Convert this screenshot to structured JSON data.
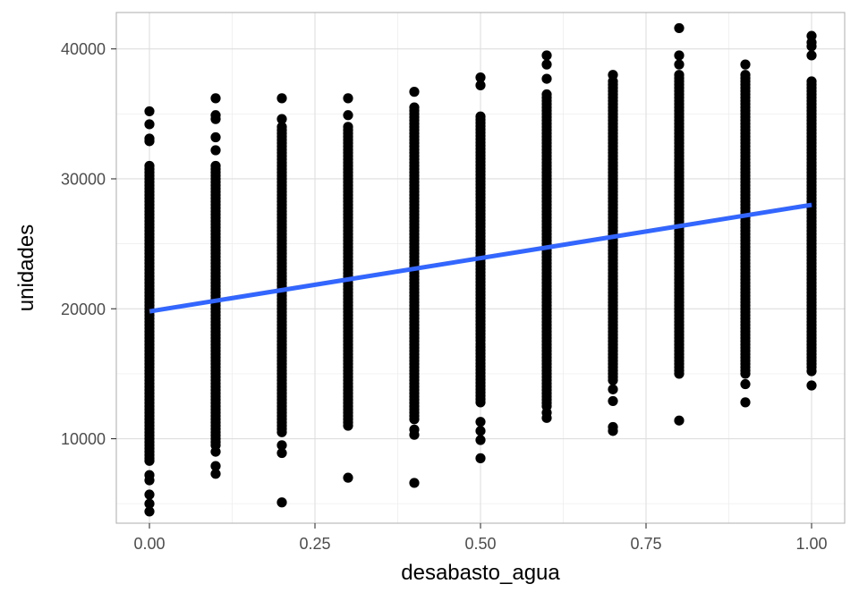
{
  "chart_data": {
    "type": "scatter",
    "title": "",
    "xlabel": "desabasto_agua",
    "ylabel": "unidades",
    "xlim": [
      -0.05,
      1.05
    ],
    "ylim": [
      3500,
      42800
    ],
    "x_ticks": [
      0.0,
      0.25,
      0.5,
      0.75,
      1.0
    ],
    "x_tick_labels": [
      "0.00",
      "0.25",
      "0.50",
      "0.75",
      "1.00"
    ],
    "y_ticks": [
      10000,
      20000,
      30000,
      40000
    ],
    "y_tick_labels": [
      "10000",
      "20000",
      "30000",
      "40000"
    ],
    "grid": true,
    "point_color": "#000000",
    "columns": [
      {
        "x": 0.0,
        "dense_range": [
          8500,
          31000
        ],
        "outliers": [
          4400,
          5000,
          5700,
          6800,
          7200,
          8300,
          32900,
          33100,
          34200,
          35200
        ]
      },
      {
        "x": 0.1,
        "dense_range": [
          9500,
          31000
        ],
        "outliers": [
          7300,
          7900,
          9000,
          32200,
          33200,
          34600,
          34900,
          36200
        ]
      },
      {
        "x": 0.2,
        "dense_range": [
          10500,
          34000
        ],
        "outliers": [
          5100,
          8900,
          9500,
          34600,
          36200
        ]
      },
      {
        "x": 0.3,
        "dense_range": [
          11000,
          34000
        ],
        "outliers": [
          7000,
          34900,
          36200
        ]
      },
      {
        "x": 0.4,
        "dense_range": [
          11500,
          35500
        ],
        "outliers": [
          6600,
          10300,
          10700,
          36700
        ]
      },
      {
        "x": 0.5,
        "dense_range": [
          12800,
          35000
        ],
        "outliers": [
          8500,
          9900,
          10600,
          11300,
          37200,
          37800
        ]
      },
      {
        "x": 0.6,
        "dense_range": [
          12500,
          36500
        ],
        "outliers": [
          11600,
          12000,
          37700,
          38800,
          39500
        ]
      },
      {
        "x": 0.7,
        "dense_range": [
          14500,
          37500
        ],
        "outliers": [
          10600,
          10900,
          12900,
          13800,
          38000
        ]
      },
      {
        "x": 0.8,
        "dense_range": [
          15000,
          38000
        ],
        "outliers": [
          11400,
          38800,
          39500,
          41600
        ]
      },
      {
        "x": 0.9,
        "dense_range": [
          15000,
          38000
        ],
        "outliers": [
          12800,
          14200,
          38800
        ]
      },
      {
        "x": 1.0,
        "dense_range": [
          15500,
          37500
        ],
        "outliers": [
          14100,
          15200,
          39500,
          40200,
          40500,
          41000
        ]
      }
    ],
    "trend_line": {
      "color": "#3366FF",
      "x": [
        0.0,
        1.0
      ],
      "y": [
        19800,
        28000
      ]
    }
  }
}
